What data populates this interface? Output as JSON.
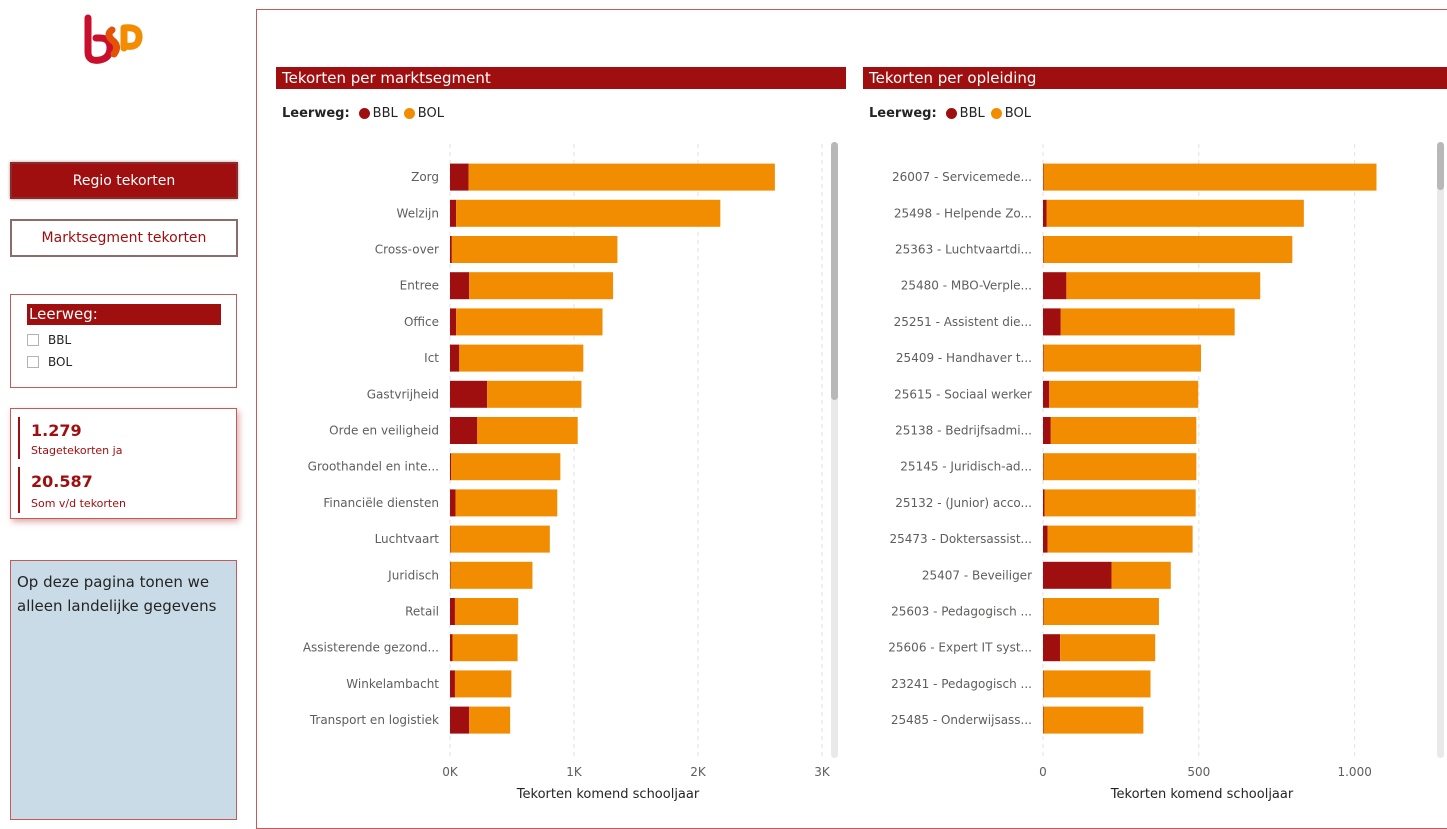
{
  "brand": {
    "logo_name": "sbb-logo",
    "colors": {
      "primary": "#a00f0f",
      "bbl": "#a00f0f",
      "bol": "#f28c00",
      "grid": "#e1e1e1",
      "info_bg": "#c8dbe6"
    }
  },
  "nav": {
    "regio_button": "Regio tekorten",
    "marktsegment_button": "Marktsegment tekorten"
  },
  "slicer": {
    "title": "Leerweg:",
    "options": [
      "BBL",
      "BOL"
    ]
  },
  "kpis": [
    {
      "value": "1.279",
      "label": "Stagetekorten ja"
    },
    {
      "value": "20.587",
      "label": "Som v/d tekorten"
    }
  ],
  "info_text": "Op deze pagina tonen we alleen landelijke gegevens",
  "legend": {
    "title": "Leerweg:",
    "items": [
      {
        "label": "BBL",
        "color": "#a00f0f"
      },
      {
        "label": "BOL",
        "color": "#f28c00"
      }
    ]
  },
  "chart_data": [
    {
      "type": "bar",
      "orientation": "horizontal",
      "stacked": true,
      "title": "Tekorten per marktsegment",
      "xlabel": "Tekorten komend schooljaar",
      "ylabel": "",
      "xlim": [
        0,
        3000
      ],
      "xticks": [
        0,
        1000,
        2000,
        3000
      ],
      "xtick_labels": [
        "0K",
        "1K",
        "2K",
        "3K"
      ],
      "grid": true,
      "categories": [
        "Zorg",
        "Welzijn",
        "Cross-over",
        "Entree",
        "Office",
        "Ict",
        "Gastvrijheid",
        "Orde en veiligheid",
        "Groothandel en inte...",
        "Financiële diensten",
        "Luchtvaart",
        "Juridisch",
        "Retail",
        "Assisterende gezond...",
        "Winkelambacht",
        "Transport en logistiek"
      ],
      "series": [
        {
          "name": "BBL",
          "values": [
            150,
            50,
            15,
            155,
            50,
            75,
            300,
            220,
            10,
            45,
            5,
            5,
            40,
            20,
            40,
            155
          ]
        },
        {
          "name": "BOL",
          "values": [
            2470,
            2130,
            1335,
            1160,
            1180,
            1000,
            760,
            810,
            880,
            820,
            800,
            660,
            510,
            525,
            455,
            330
          ]
        }
      ]
    },
    {
      "type": "bar",
      "orientation": "horizontal",
      "stacked": true,
      "title": "Tekorten per opleiding",
      "xlabel": "Tekorten komend schooljaar",
      "ylabel": "",
      "xlim": [
        0,
        1200
      ],
      "xticks": [
        0,
        500,
        1000
      ],
      "xtick_labels": [
        "0",
        "500",
        "1.000"
      ],
      "grid": true,
      "categories": [
        "26007 - Servicemede...",
        "25498 - Helpende Zo...",
        "25363 - Luchtvaartdi...",
        "25480 - MBO-Verple...",
        "25251 - Assistent die...",
        "25409 - Handhaver t...",
        "25615 - Sociaal werker",
        "25138 - Bedrijfsadmi...",
        "25145 - Juridisch-ad...",
        "25132 - (Junior) acco...",
        "25473 - Doktersassist...",
        "25407 - Beveiliger",
        "25603 - Pedagogisch ...",
        "25606 - Expert IT syst...",
        "23241 - Pedagogisch ...",
        "25485 - Onderwijsass..."
      ],
      "series": [
        {
          "name": "BBL",
          "values": [
            2,
            12,
            2,
            75,
            57,
            2,
            20,
            25,
            2,
            5,
            15,
            220,
            2,
            55,
            2,
            2
          ]
        },
        {
          "name": "BOL",
          "values": [
            1068,
            825,
            798,
            622,
            558,
            505,
            478,
            467,
            490,
            485,
            465,
            190,
            370,
            305,
            343,
            320
          ]
        }
      ]
    }
  ]
}
